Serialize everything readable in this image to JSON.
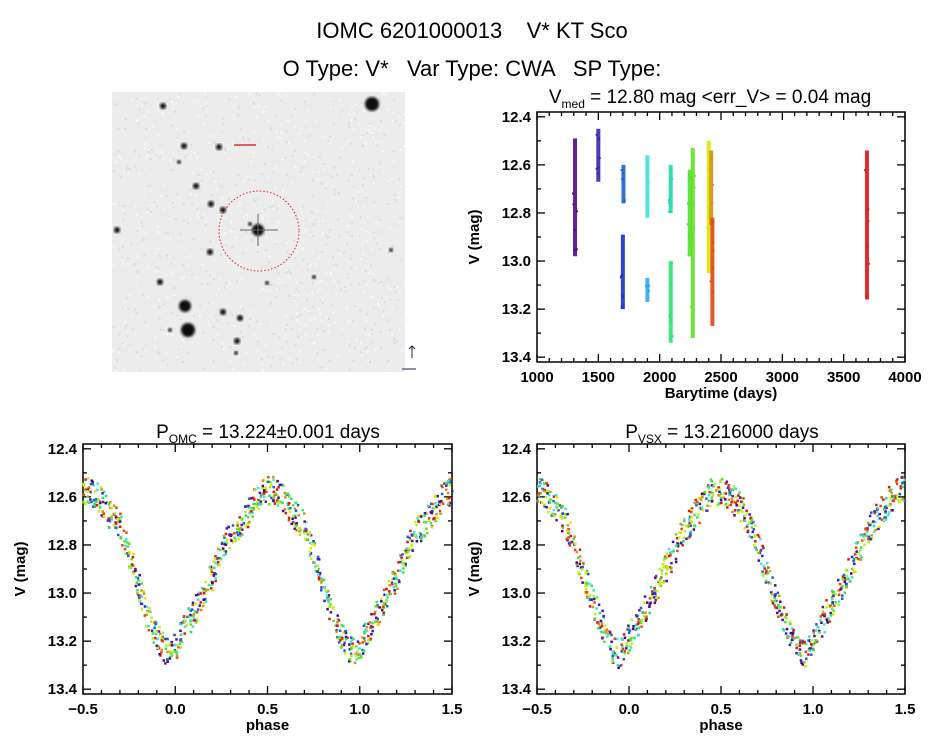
{
  "header": {
    "title": "IOMC 6201000013    V* KT Sco",
    "subtitle": "O Type: V*   Var Type: CWA   SP Type:"
  },
  "image_panel": {
    "description_label": "",
    "circle_color": "#dd2020"
  },
  "chart_data": [
    {
      "type": "scatter",
      "title_main": "V",
      "title_sub": "med",
      "title_rest": " = 12.80 mag <err_V> = 0.04 mag",
      "xlabel": "Barytime (days)",
      "ylabel": "V (mag)",
      "xlim": [
        1000,
        4000
      ],
      "ylim": [
        13.42,
        12.38
      ],
      "y_inverted": true,
      "xticks": [
        "1000",
        "1500",
        "2000",
        "2500",
        "3000",
        "3500",
        "4000"
      ],
      "yticks": [
        "12.4",
        "12.6",
        "12.8",
        "13.0",
        "13.2",
        "13.4"
      ],
      "series": [
        {
          "x": 1310,
          "ymin": 12.49,
          "ymax": 12.98,
          "color": "#4b0a8a"
        },
        {
          "x": 1500,
          "ymin": 12.45,
          "ymax": 12.67,
          "color": "#3a20b0"
        },
        {
          "x": 1705,
          "ymin": 12.6,
          "ymax": 12.76,
          "color": "#1e60d0"
        },
        {
          "x": 1700,
          "ymin": 12.89,
          "ymax": 13.2,
          "color": "#1a30c8"
        },
        {
          "x": 1900,
          "ymin": 12.56,
          "ymax": 12.82,
          "color": "#40e0e0"
        },
        {
          "x": 1900,
          "ymin": 13.07,
          "ymax": 13.17,
          "color": "#30a8e8"
        },
        {
          "x": 2090,
          "ymin": 12.6,
          "ymax": 12.8,
          "color": "#20d8a8"
        },
        {
          "x": 2090,
          "ymin": 13.0,
          "ymax": 13.34,
          "color": "#30e070"
        },
        {
          "x": 2245,
          "ymin": 12.62,
          "ymax": 12.98,
          "color": "#50e030"
        },
        {
          "x": 2270,
          "ymin": 12.53,
          "ymax": 13.32,
          "color": "#60e020"
        },
        {
          "x": 2400,
          "ymin": 12.5,
          "ymax": 13.05,
          "color": "#d8e800"
        },
        {
          "x": 2420,
          "ymin": 12.54,
          "ymax": 12.85,
          "color": "#d89010"
        },
        {
          "x": 2430,
          "ymin": 12.82,
          "ymax": 13.27,
          "color": "#e04810"
        },
        {
          "x": 3690,
          "ymin": 12.54,
          "ymax": 13.16,
          "color": "#dd1515"
        }
      ]
    },
    {
      "type": "scatter",
      "title_main": "P",
      "title_sub": "OMC",
      "title_rest": " = 13.224±0.001 days",
      "xlabel": "phase",
      "ylabel": "V (mag)",
      "xlim": [
        -0.5,
        1.5
      ],
      "ylim": [
        13.42,
        12.38
      ],
      "y_inverted": true,
      "xticks": [
        "-0.5",
        "0.0",
        "0.5",
        "1.0",
        "1.5"
      ],
      "yticks": [
        "12.4",
        "12.6",
        "12.8",
        "13.0",
        "13.2",
        "13.4"
      ],
      "phase": [
        0.0,
        0.05,
        0.1,
        0.15,
        0.2,
        0.25,
        0.3,
        0.35,
        0.4,
        0.45,
        0.5,
        0.55,
        0.6,
        0.65,
        0.7,
        0.75,
        0.8,
        0.85,
        0.9,
        0.95
      ],
      "mag": [
        13.22,
        13.15,
        13.08,
        13.0,
        12.93,
        12.84,
        12.74,
        12.72,
        12.66,
        12.6,
        12.57,
        12.58,
        12.62,
        12.68,
        12.72,
        12.84,
        12.96,
        13.1,
        13.18,
        13.24
      ]
    },
    {
      "type": "scatter",
      "title_main": "P",
      "title_sub": "VSX",
      "title_rest": " = 13.216000 days",
      "xlabel": "phase",
      "ylabel": "V (mag)",
      "xlim": [
        -0.5,
        1.5
      ],
      "ylim": [
        13.42,
        12.38
      ],
      "y_inverted": true,
      "xticks": [
        "-0.5",
        "0.0",
        "0.5",
        "1.0",
        "1.5"
      ],
      "yticks": [
        "12.4",
        "12.6",
        "12.8",
        "13.0",
        "13.2",
        "13.4"
      ],
      "phase": [
        0.0,
        0.05,
        0.1,
        0.15,
        0.2,
        0.25,
        0.3,
        0.35,
        0.4,
        0.45,
        0.5,
        0.55,
        0.6,
        0.65,
        0.7,
        0.75,
        0.8,
        0.85,
        0.9,
        0.95
      ],
      "mag": [
        13.18,
        13.12,
        13.05,
        12.98,
        12.9,
        12.82,
        12.74,
        12.68,
        12.63,
        12.58,
        12.57,
        12.6,
        12.64,
        12.7,
        12.8,
        12.92,
        13.03,
        13.12,
        13.22,
        13.26
      ]
    }
  ],
  "colors": [
    "#4b0a8a",
    "#3a20b0",
    "#1e60d0",
    "#40e0e0",
    "#30e070",
    "#60e020",
    "#b8f020",
    "#d8e800",
    "#d89010",
    "#e04810",
    "#dd1515"
  ]
}
